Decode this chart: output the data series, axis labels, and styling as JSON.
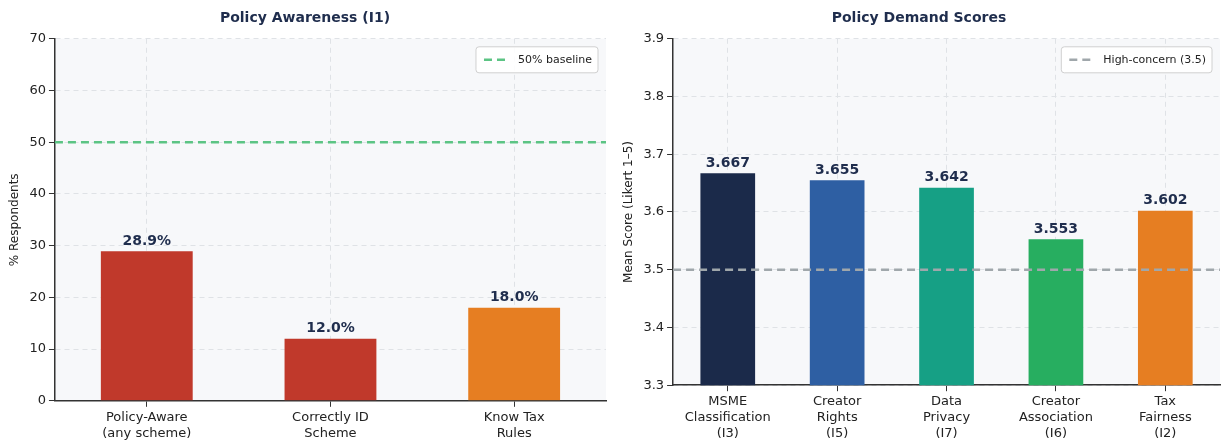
{
  "chart_data": [
    {
      "type": "bar",
      "title": "Policy Awareness (I1)",
      "ylabel": "% Respondents",
      "categories": [
        "Policy-Aware\n(any scheme)",
        "Correctly ID\nScheme",
        "Know Tax\nRules"
      ],
      "values": [
        28.9,
        12.0,
        18.0
      ],
      "colors": [
        "#c0392b",
        "#c0392b",
        "#e67e22"
      ],
      "value_labels": [
        "28.9%",
        "12.0%",
        "18.0%"
      ],
      "ylim": [
        0,
        70
      ],
      "yticks": [
        0,
        10,
        20,
        30,
        40,
        50,
        60,
        70
      ],
      "grid": true,
      "legend": "top right",
      "ref_lines": [
        {
          "axis": "y",
          "value": 50,
          "label": "50% baseline",
          "color": "#5cc484",
          "line_style": "dashed"
        }
      ]
    },
    {
      "type": "bar",
      "title": "Policy Demand Scores",
      "ylabel": "Mean Score (Likert 1–5)",
      "categories": [
        "MSME\nClassification\n(I3)",
        "Creator\nRights\n(I5)",
        "Data\nPrivacy\n(I7)",
        "Creator\nAssociation\n(I6)",
        "Tax\nFairness\n(I2)"
      ],
      "values": [
        3.667,
        3.655,
        3.642,
        3.553,
        3.602
      ],
      "colors": [
        "#1b2a4a",
        "#2e5fa3",
        "#16a085",
        "#27ae60",
        "#e67e22"
      ],
      "data_labels": true,
      "ylim": [
        3.3,
        3.9
      ],
      "yticks": [
        3.3,
        3.4,
        3.5,
        3.6,
        3.7,
        3.8,
        3.9
      ],
      "grid": true,
      "legend": "top right",
      "ref_lines": [
        {
          "axis": "y",
          "value": 3.5,
          "label": "High-concern (3.5)",
          "color": "#a0a7ab",
          "line_style": "dashed"
        }
      ]
    }
  ]
}
